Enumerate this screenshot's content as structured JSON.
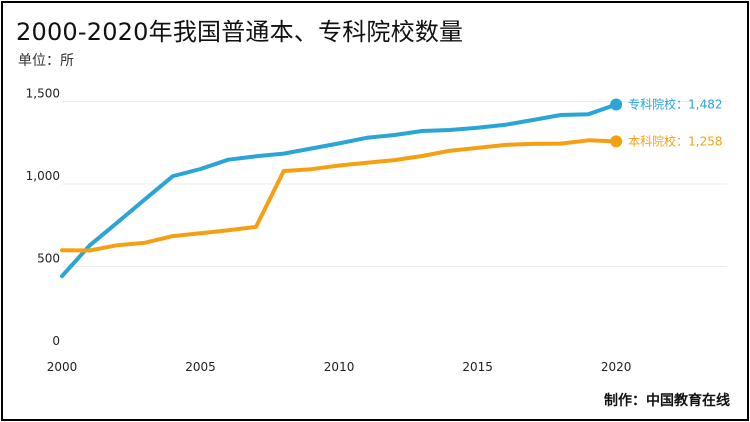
{
  "header": {
    "title": "2000-2020年我国普通本、专科院校数量",
    "unit": "单位：所"
  },
  "footer": {
    "source": "制作：中国教育在线"
  },
  "chart_data": {
    "type": "line",
    "title": "2000-2020年我国普通本、专科院校数量",
    "xlabel": "",
    "ylabel": "",
    "x": [
      2000,
      2001,
      2002,
      2003,
      2004,
      2005,
      2006,
      2007,
      2008,
      2009,
      2010,
      2011,
      2012,
      2013,
      2014,
      2015,
      2016,
      2017,
      2018,
      2019,
      2020
    ],
    "xlim": [
      2000,
      2024
    ],
    "ylim": [
      0,
      1600
    ],
    "xticks": [
      "2000",
      "2005",
      "2010",
      "2015",
      "2020"
    ],
    "yticks": [
      "0",
      "500",
      "1,000",
      "1,500"
    ],
    "grid": true,
    "series": [
      {
        "name": "专科院校",
        "color": "#2aa5d6",
        "values": [
          442,
          628,
          767,
          908,
          1047,
          1091,
          1147,
          1168,
          1184,
          1215,
          1246,
          1280,
          1297,
          1321,
          1327,
          1341,
          1359,
          1388,
          1418,
          1423,
          1482
        ],
        "end_label": "专科院校：1,482"
      },
      {
        "name": "本科院校",
        "color": "#f5a011",
        "values": [
          599,
          597,
          629,
          644,
          684,
          701,
          720,
          740,
          1079,
          1090,
          1112,
          1129,
          1145,
          1170,
          1202,
          1219,
          1237,
          1243,
          1245,
          1265,
          1258
        ],
        "end_label": "本科院校：1,258"
      }
    ]
  }
}
